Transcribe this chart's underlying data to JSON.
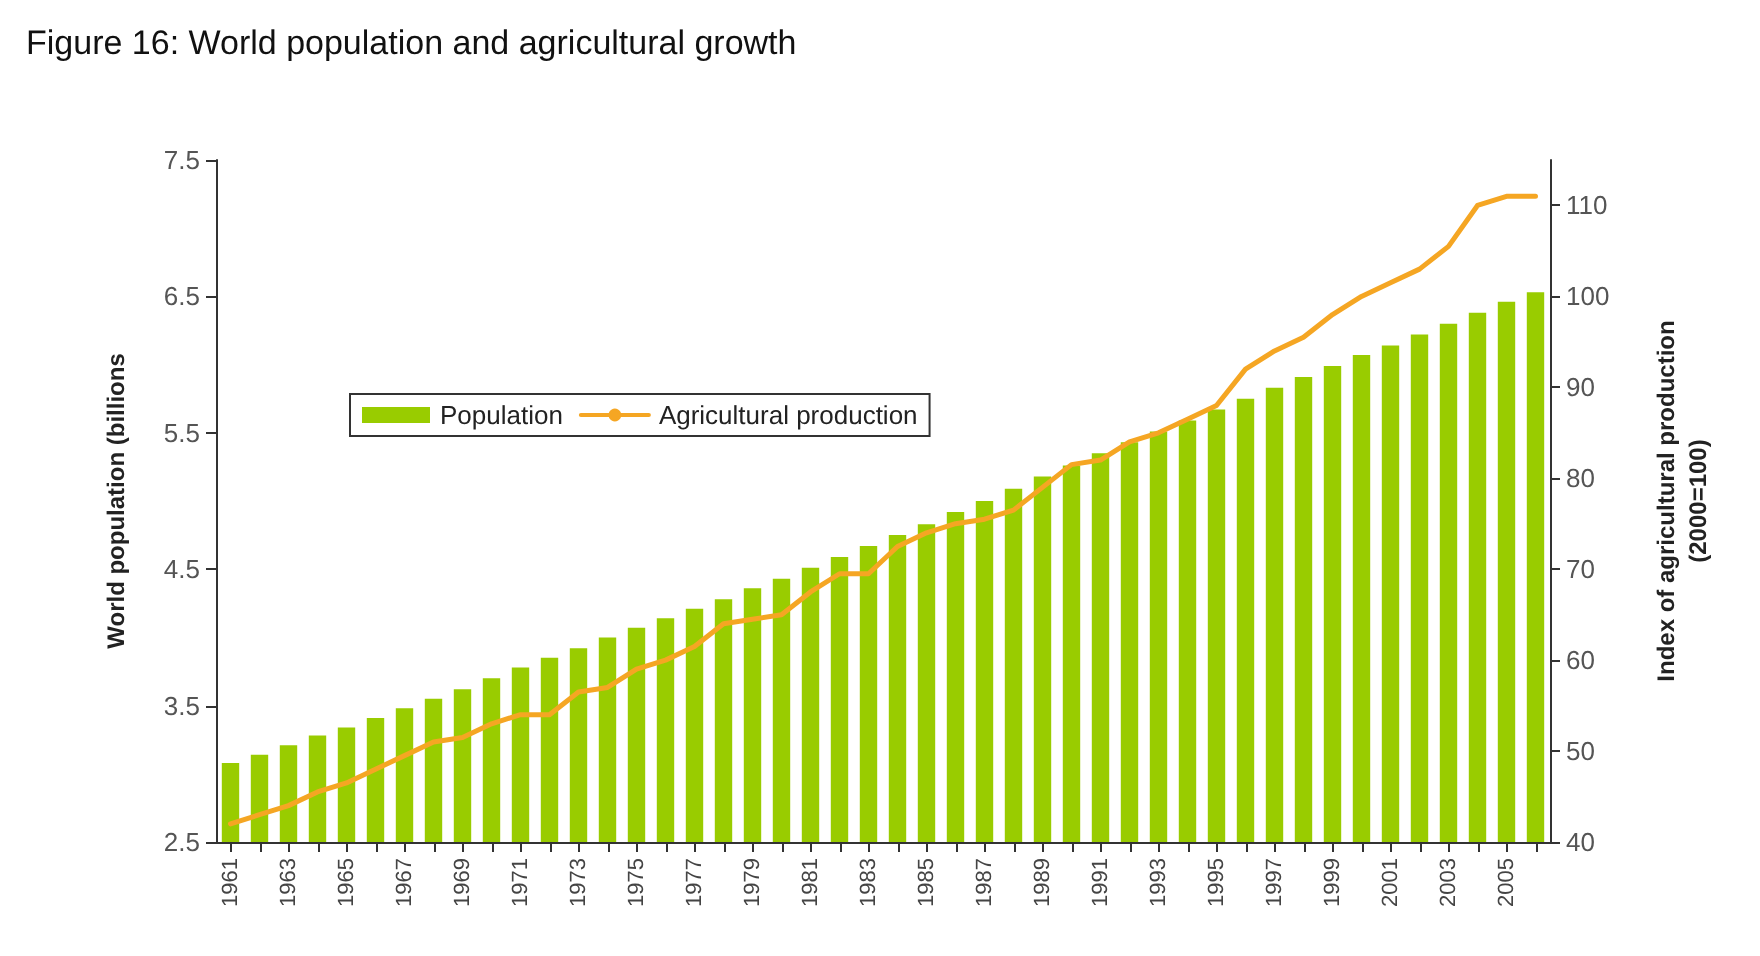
{
  "chart_data": {
    "type": "bar",
    "title": "Figure 16: World population and agricultural growth",
    "ylabel": "World population (billions",
    "y2label": "Index of agricultural production\n(2000=100)",
    "categories": [
      "1961",
      null,
      "1963",
      null,
      "1965",
      null,
      "1967",
      null,
      "1969",
      null,
      "1971",
      null,
      "1973",
      null,
      "1975",
      null,
      "1977",
      null,
      "1979",
      null,
      "1981",
      null,
      "1983",
      null,
      "1985",
      null,
      "1987",
      null,
      "1989",
      null,
      "1991",
      null,
      "1993",
      null,
      "1995",
      null,
      "1997",
      null,
      "1999",
      null,
      "2001",
      null,
      "2003",
      null,
      "2005",
      null
    ],
    "series": [
      {
        "name": "Population",
        "color": "#99cc00",
        "values": [
          3.08,
          3.14,
          3.21,
          3.28,
          3.34,
          3.41,
          3.48,
          3.55,
          3.62,
          3.7,
          3.78,
          3.85,
          3.92,
          4.0,
          4.07,
          4.14,
          4.21,
          4.28,
          4.36,
          4.43,
          4.51,
          4.59,
          4.67,
          4.75,
          4.83,
          4.92,
          5.0,
          5.09,
          5.18,
          5.26,
          5.35,
          5.43,
          5.51,
          5.59,
          5.67,
          5.75,
          5.83,
          5.91,
          5.99,
          6.07,
          6.14,
          6.22,
          6.3,
          6.38,
          6.46,
          6.53
        ]
      },
      {
        "name": "Agricultural production",
        "type": "line",
        "axis": "y2",
        "color": "#f5a623",
        "values": [
          42,
          43,
          44,
          45.5,
          46.5,
          48,
          49.5,
          51,
          51.5,
          53,
          54,
          54,
          56.5,
          57,
          59,
          60,
          61.5,
          64,
          64.5,
          65,
          67.5,
          69.5,
          69.5,
          72.5,
          74,
          75,
          75.5,
          76.5,
          79,
          81.5,
          82,
          84,
          85,
          86.5,
          88,
          92,
          94,
          95.5,
          98,
          100,
          101.5,
          103,
          105.5,
          110,
          111,
          111
        ]
      }
    ],
    "ylim": [
      2.5,
      7.5
    ],
    "yticks": [
      2.5,
      3.5,
      4.5,
      5.5,
      6.5,
      7.5
    ],
    "y2lim": [
      40,
      115
    ],
    "y2ticks": [
      40,
      50,
      60,
      70,
      80,
      90,
      100,
      110
    ],
    "grid": false,
    "legend": "left",
    "marker": "none",
    "line_style": "solid"
  }
}
